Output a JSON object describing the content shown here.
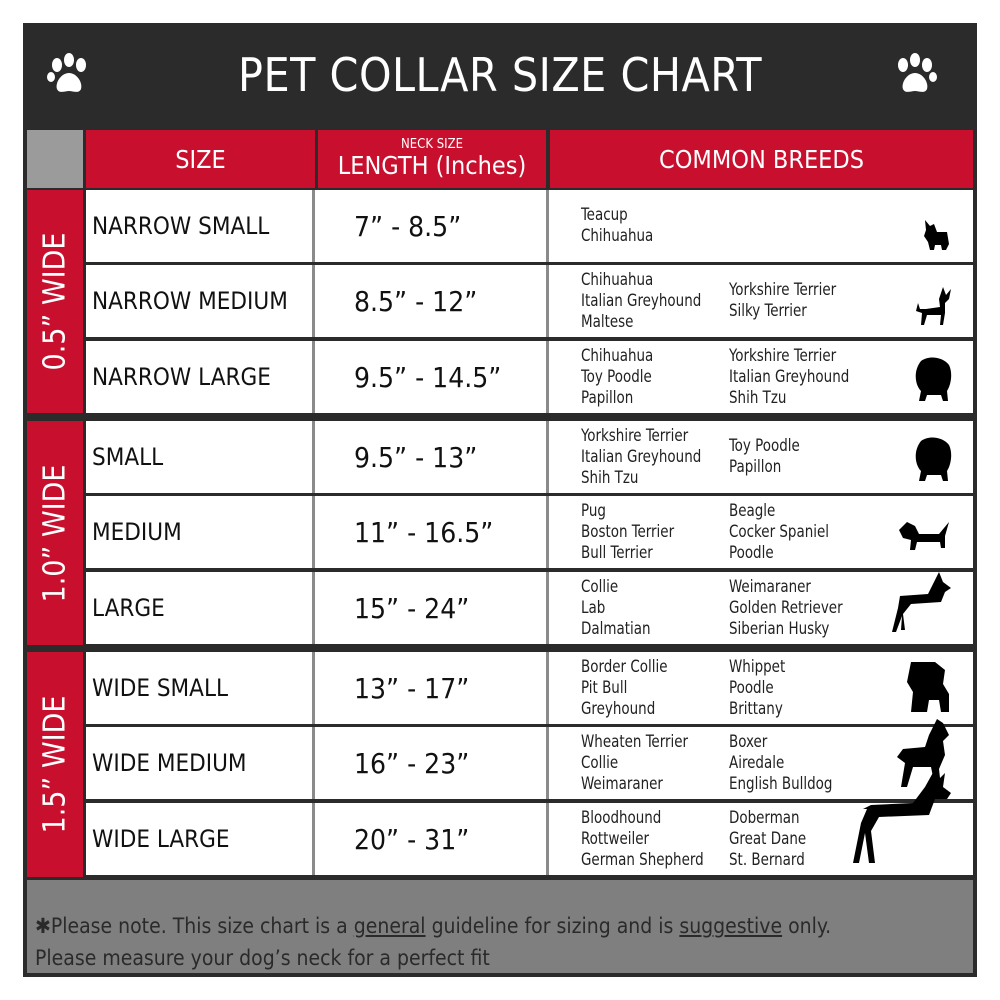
{
  "title": "PET COLLAR SIZE CHART",
  "colors": {
    "red": "#c8102e",
    "dark": "#2b2b2b",
    "gray": "#7f7f80"
  },
  "headers": {
    "size": "SIZE",
    "length_small": "NECK SIZE",
    "length": "LENGTH (Inches)",
    "breeds": "COMMON BREEDS"
  },
  "groups": [
    "0.5” WIDE",
    "1.0” WIDE",
    "1.5” WIDE"
  ],
  "rows": [
    {
      "size": "NARROW SMALL",
      "length": "7” - 8.5”",
      "col1": [
        "Teacup",
        "Chihuahua"
      ],
      "col2": []
    },
    {
      "size": "NARROW MEDIUM",
      "length": "8.5” - 12”",
      "col1": [
        "Chihuahua",
        "Italian Greyhound",
        "Maltese"
      ],
      "col2": [
        "Yorkshire Terrier",
        "Silky Terrier"
      ]
    },
    {
      "size": "NARROW LARGE",
      "length": "9.5” - 14.5”",
      "col1": [
        "Chihuahua",
        "Toy Poodle",
        "Papillon"
      ],
      "col2": [
        "Yorkshire Terrier",
        "Italian Greyhound",
        "Shih Tzu"
      ]
    },
    {
      "size": "SMALL",
      "length": "9.5” - 13”",
      "col1": [
        "Yorkshire Terrier",
        "Italian Greyhound",
        "Shih Tzu"
      ],
      "col2": [
        "Toy Poodle",
        "Papillon"
      ]
    },
    {
      "size": "MEDIUM",
      "length": "11” - 16.5”",
      "col1": [
        "Pug",
        "Boston Terrier",
        "Bull Terrier"
      ],
      "col2": [
        "Beagle",
        "Cocker Spaniel",
        "Poodle"
      ]
    },
    {
      "size": "LARGE",
      "length": "15” - 24”",
      "col1": [
        "Collie",
        "Lab",
        "Dalmatian"
      ],
      "col2": [
        "Weimaraner",
        "Golden Retriever",
        "Siberian Husky"
      ]
    },
    {
      "size": "WIDE SMALL",
      "length": "13” - 17”",
      "col1": [
        "Border Collie",
        "Pit Bull",
        "Greyhound"
      ],
      "col2": [
        "Whippet",
        "Poodle",
        "Brittany"
      ]
    },
    {
      "size": "WIDE MEDIUM",
      "length": "16” - 23”",
      "col1": [
        "Wheaten Terrier",
        "Collie",
        "Weimaraner"
      ],
      "col2": [
        "Boxer",
        "Airedale",
        "English Bulldog"
      ]
    },
    {
      "size": "WIDE LARGE",
      "length": "20” - 31”",
      "col1": [
        "Bloodhound",
        "Rottweiler",
        "German Shepherd"
      ],
      "col2": [
        "Doberman",
        "Great Dane",
        "St. Bernard"
      ]
    }
  ],
  "footer": {
    "p1": "✱Please note. This size chart is a",
    "u1": "general",
    "p2": "guideline for sizing and is",
    "u2": "suggestive",
    "p3": "only.",
    "line2": "Please measure your dog’s neck for a perfect fit"
  }
}
